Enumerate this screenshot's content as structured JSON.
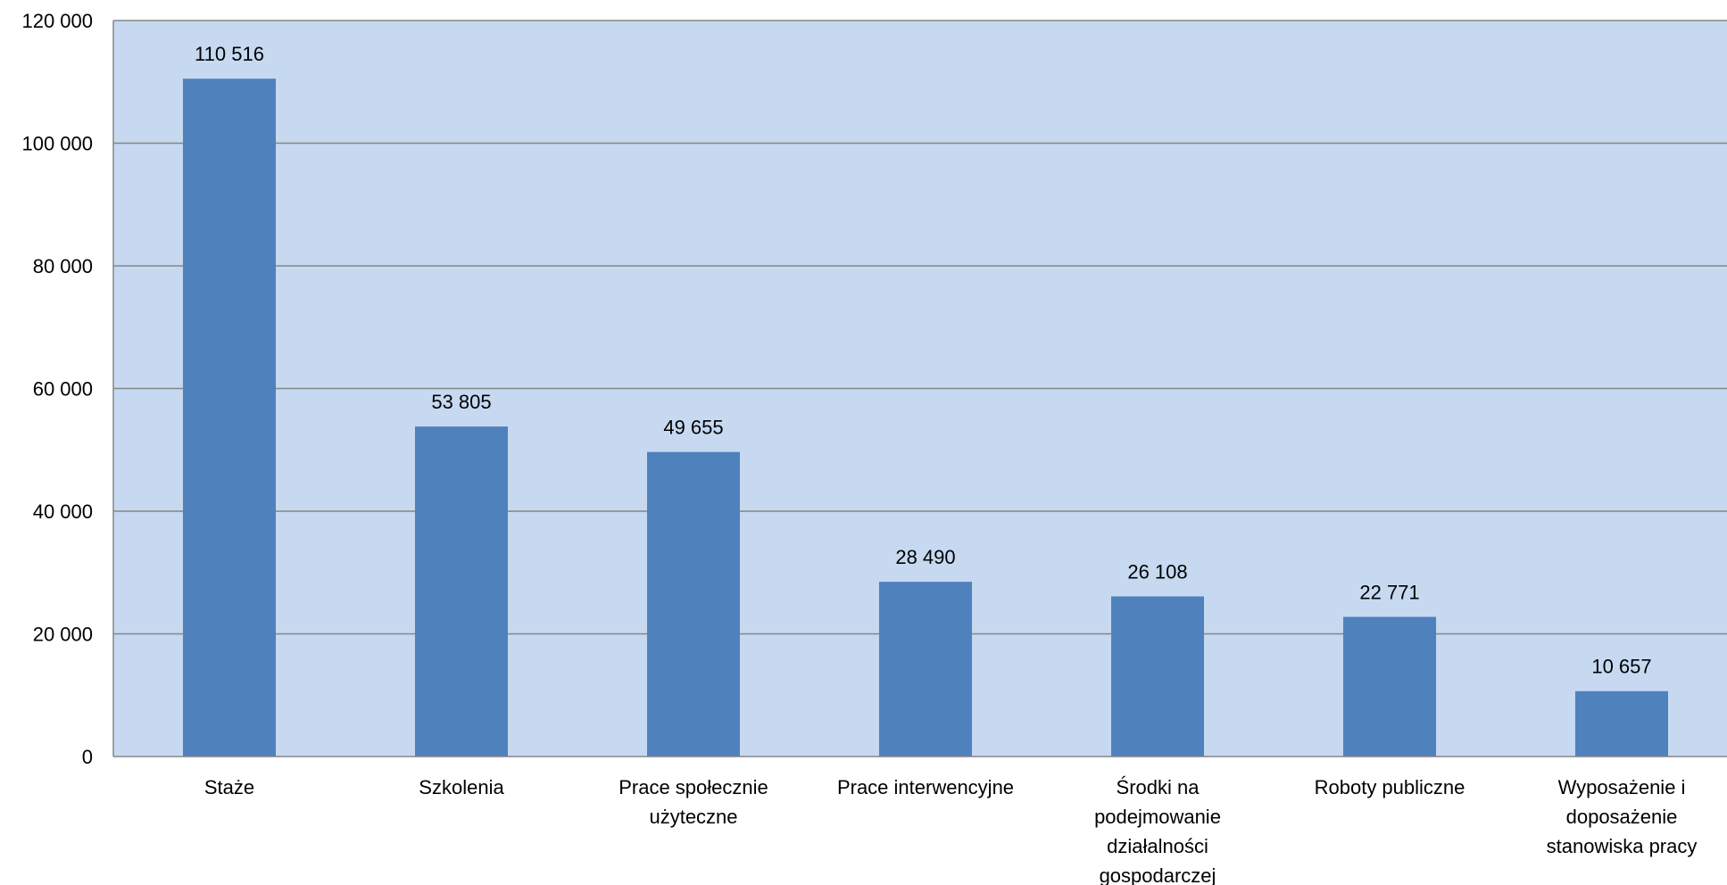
{
  "chart_data": {
    "type": "bar",
    "categories": [
      "Staże",
      "Szkolenia",
      "Prace społecznie użyteczne",
      "Prace interwencyjne",
      "Środki na podejmowanie działalności gospodarczej",
      "Roboty publiczne",
      "Wyposażenie i doposażenie stanowiska pracy"
    ],
    "category_lines": [
      [
        "Staże"
      ],
      [
        "Szkolenia"
      ],
      [
        "Prace społecznie",
        "użyteczne"
      ],
      [
        "Prace interwencyjne"
      ],
      [
        "Środki na",
        "podejmowanie",
        "działalności",
        "gospodarczej"
      ],
      [
        "Roboty publiczne"
      ],
      [
        "Wyposażenie i",
        "doposażenie",
        "stanowiska pracy"
      ]
    ],
    "values": [
      110516,
      53805,
      49655,
      28490,
      26108,
      22771,
      10657
    ],
    "data_labels": [
      "110 516",
      "53 805",
      "49 655",
      "28 490",
      "26 108",
      "22 771",
      "10 657"
    ],
    "ylim": [
      0,
      120000
    ],
    "yticks": [
      0,
      20000,
      40000,
      60000,
      80000,
      100000,
      120000
    ],
    "ytick_labels": [
      "0",
      "20 000",
      "40 000",
      "60 000",
      "80 000",
      "100 000",
      "120 000"
    ],
    "title": "",
    "xlabel": "",
    "ylabel": "",
    "grid": true,
    "colors": {
      "plot_background": "#c6d9f1",
      "bar": "#4f81bd",
      "gridline": "#868686",
      "axis": "#868686"
    }
  }
}
